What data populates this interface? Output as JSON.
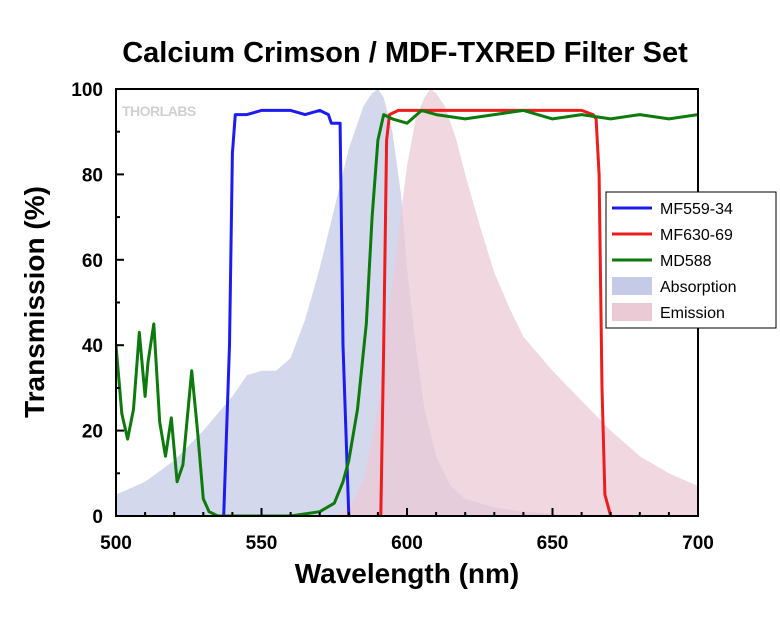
{
  "chart_data": {
    "type": "line",
    "title": "Calcium Crimson / MDF-TXRED Filter Set",
    "xlabel": "Wavelength (nm)",
    "ylabel": "Transmission (%)",
    "xlim": [
      500,
      700
    ],
    "ylim": [
      0,
      100
    ],
    "xticks": [
      "500",
      "550",
      "600",
      "650",
      "700"
    ],
    "yticks": [
      "0",
      "20",
      "40",
      "60",
      "80",
      "100"
    ],
    "watermark": "THORLABS",
    "grid": false,
    "legend_position": "right",
    "series": [
      {
        "name": "MF559-34",
        "type": "line",
        "color": "#1c1cf0",
        "x": [
          537,
          539,
          540,
          541,
          545,
          550,
          555,
          560,
          565,
          570,
          573,
          574,
          575,
          576,
          577,
          578,
          580
        ],
        "y": [
          0,
          40,
          85,
          94,
          94,
          95,
          95,
          95,
          94,
          95,
          94,
          92,
          92,
          92,
          92,
          40,
          0
        ]
      },
      {
        "name": "MF630-69",
        "type": "line",
        "color": "#ee1c1c",
        "x": [
          591,
          592,
          593,
          594,
          597,
          600,
          605,
          610,
          620,
          630,
          640,
          650,
          660,
          664,
          665,
          666,
          667,
          668,
          670
        ],
        "y": [
          0,
          40,
          88,
          94,
          95,
          95,
          95,
          95,
          95,
          95,
          95,
          95,
          95,
          94,
          93,
          80,
          30,
          5,
          0
        ]
      },
      {
        "name": "MD588",
        "type": "line",
        "color": "#0d7a0d",
        "x": [
          500,
          502,
          504,
          506,
          508,
          510,
          511,
          513,
          515,
          517,
          519,
          521,
          523,
          526,
          528,
          530,
          532,
          535,
          540,
          550,
          560,
          570,
          575,
          578,
          580,
          583,
          586,
          588,
          590,
          592,
          595,
          600,
          605,
          610,
          620,
          630,
          640,
          650,
          660,
          670,
          680,
          690,
          700
        ],
        "y": [
          40,
          24,
          18,
          25,
          43,
          28,
          36,
          45,
          22,
          14,
          23,
          8,
          12,
          34,
          20,
          4,
          1,
          0,
          0,
          0,
          0,
          1,
          3,
          8,
          13,
          25,
          45,
          70,
          88,
          94,
          93,
          92,
          95,
          94,
          93,
          94,
          95,
          93,
          94,
          93,
          94,
          93,
          94
        ]
      },
      {
        "name": "Absorption",
        "type": "area",
        "color": "#c5cbe6",
        "x": [
          500,
          510,
          520,
          530,
          540,
          545,
          550,
          555,
          560,
          565,
          570,
          575,
          580,
          585,
          588,
          590,
          592,
          595,
          598,
          600,
          603,
          606,
          610,
          615,
          620,
          630,
          640,
          650,
          660
        ],
        "y": [
          5,
          8,
          13,
          20,
          28,
          33,
          34,
          34,
          37,
          46,
          58,
          72,
          86,
          96,
          99,
          100,
          98,
          90,
          75,
          58,
          40,
          25,
          14,
          7,
          4,
          2,
          1,
          0.5,
          0
        ]
      },
      {
        "name": "Emission",
        "type": "area",
        "color": "#ebcad6",
        "x": [
          575,
          580,
          585,
          590,
          595,
          600,
          603,
          606,
          608,
          610,
          613,
          617,
          620,
          625,
          630,
          635,
          640,
          650,
          660,
          670,
          680,
          690,
          700
        ],
        "y": [
          0,
          2,
          8,
          25,
          55,
          82,
          93,
          98,
          100,
          99,
          96,
          88,
          80,
          68,
          57,
          49,
          42,
          34,
          27,
          20,
          14,
          10,
          7
        ]
      }
    ]
  }
}
